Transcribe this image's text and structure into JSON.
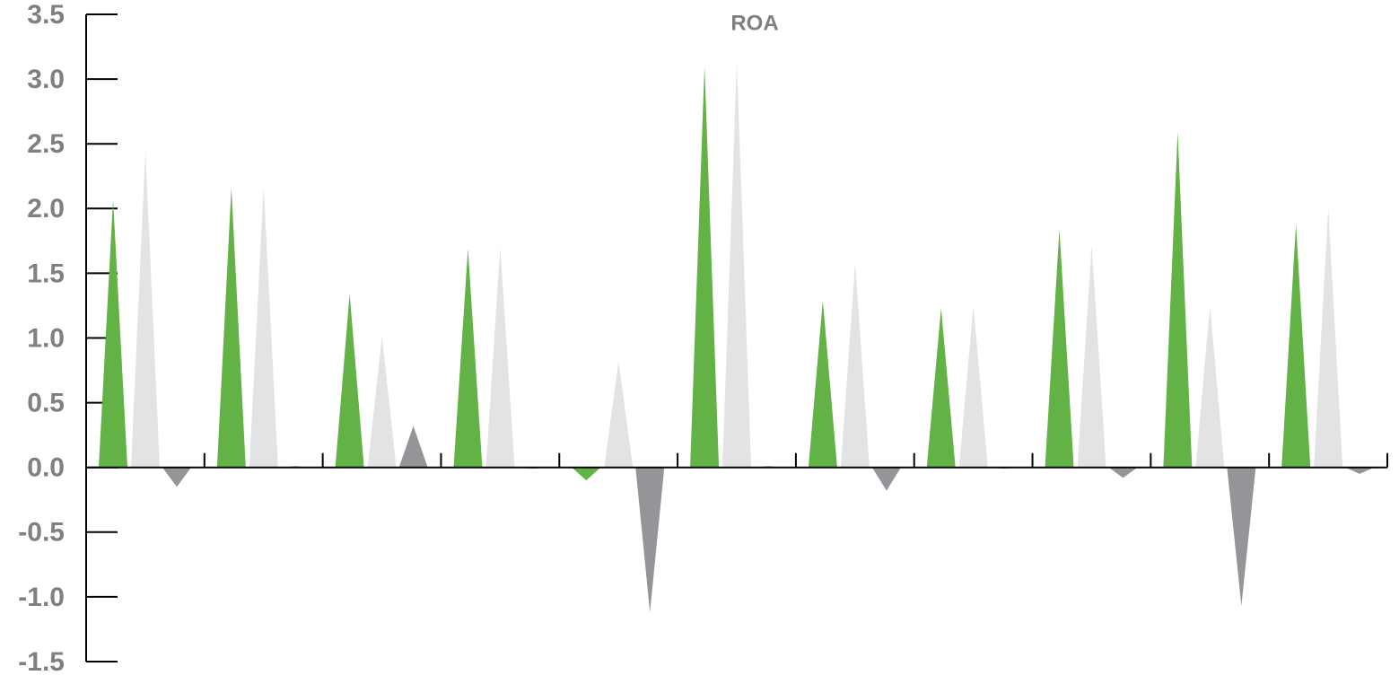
{
  "chart_data": {
    "type": "spike",
    "title": "ROA",
    "categories": [
      null,
      null,
      null,
      null,
      null,
      null,
      null,
      null,
      null,
      null,
      null
    ],
    "series": [
      {
        "color": "#62b246",
        "values": [
          2.07,
          2.16,
          1.34,
          1.69,
          -0.1,
          3.1,
          1.29,
          1.23,
          1.84,
          2.59,
          1.88
        ]
      },
      {
        "color": "#e2e3e4",
        "values": [
          2.45,
          2.17,
          1.01,
          1.7,
          0.82,
          3.13,
          1.58,
          1.25,
          1.72,
          1.25,
          2.0
        ]
      },
      {
        "color": "#939598",
        "values": [
          -0.15,
          0.01,
          0.32,
          -0.01,
          -1.12,
          0.01,
          -0.18,
          -0.01,
          -0.08,
          -1.07,
          -0.05
        ]
      }
    ],
    "ylim": [
      -1.5,
      3.5
    ],
    "yticks": [
      -1.5,
      {
        "value": -1,
        "label": "-1.0"
      },
      -0.5,
      {
        "value": 0,
        "label": "0.0"
      },
      0.5,
      {
        "value": 1,
        "label": "1.0"
      },
      1.5,
      {
        "value": 2,
        "label": "2.0"
      },
      2.5,
      {
        "value": 3,
        "label": "3.0"
      },
      3.5
    ]
  }
}
